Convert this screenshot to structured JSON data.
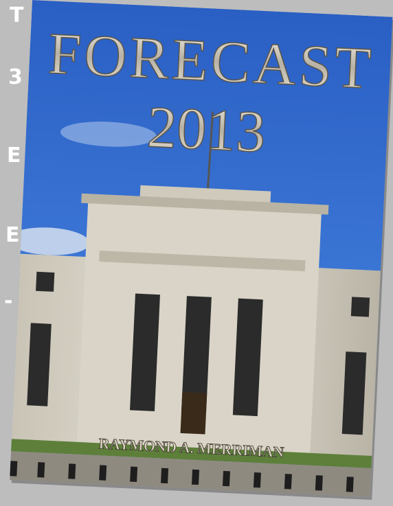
{
  "cover": {
    "title": "FORECAST",
    "year": "2013",
    "author": "RAYMOND A. MERRIMAN"
  },
  "edge_letters": [
    "T",
    "3",
    "E",
    "E",
    "-"
  ]
}
